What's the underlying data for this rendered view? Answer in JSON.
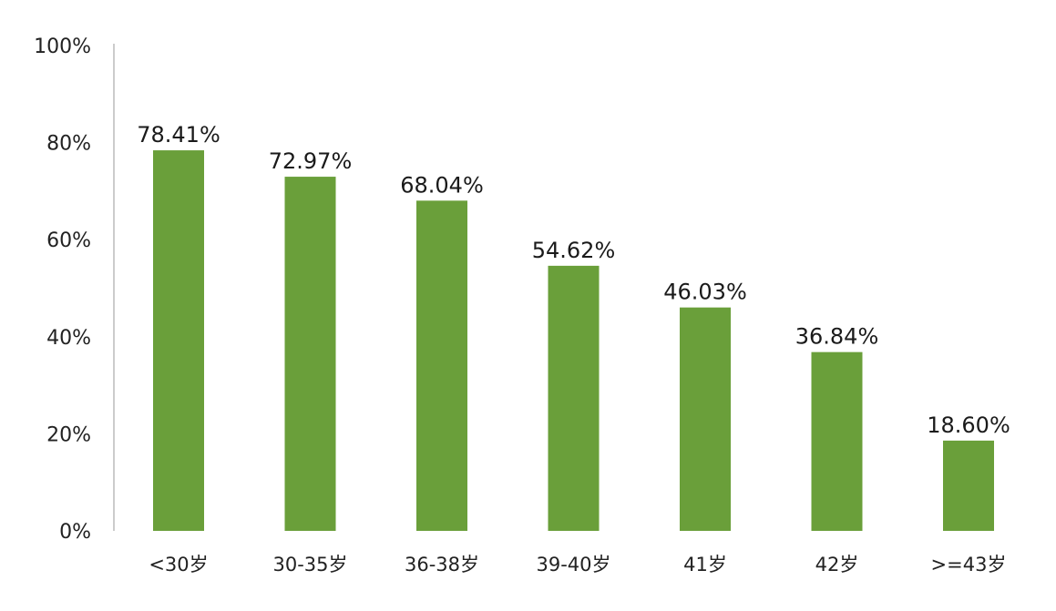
{
  "chart_data": {
    "type": "bar",
    "categories": [
      "<30岁",
      "30-35岁",
      "36-38岁",
      "39-40岁",
      "41岁",
      "42岁",
      ">=43岁"
    ],
    "values": [
      78.41,
      72.97,
      68.04,
      54.62,
      46.03,
      36.84,
      18.6
    ],
    "data_labels": [
      "78.41%",
      "72.97%",
      "68.04%",
      "54.62%",
      "46.03%",
      "36.84%",
      "18.60%"
    ],
    "y_ticks": [
      "0%",
      "20%",
      "40%",
      "60%",
      "80%",
      "100%"
    ],
    "y_tick_values": [
      0,
      20,
      40,
      60,
      80,
      100
    ],
    "ylim": [
      0,
      100
    ],
    "title": "",
    "xlabel": "",
    "ylabel": "",
    "grid": false,
    "legend": "none",
    "bar_color": "#6a9f3a",
    "axis_color": "#bbbbbb"
  }
}
